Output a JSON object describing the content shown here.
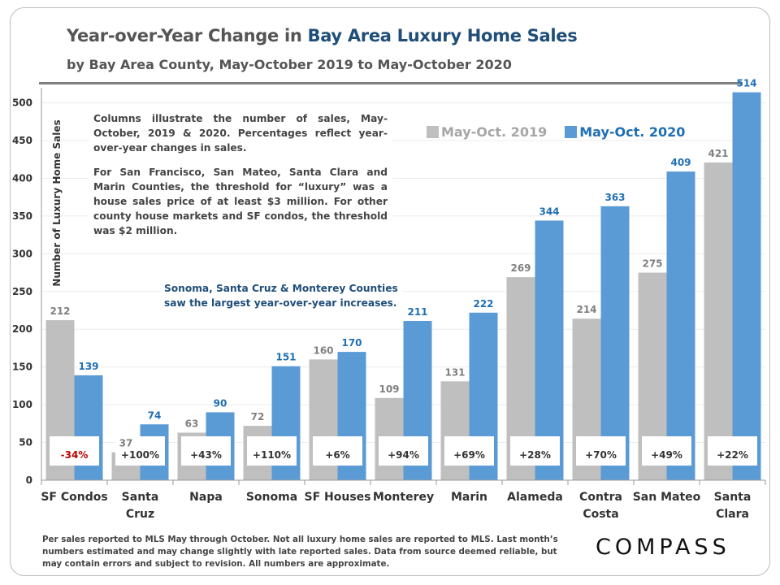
{
  "title_part1": "Year-over-Year Change in ",
  "title_part2": "Bay Area Luxury Home Sales",
  "subtitle": "by Bay Area County, May-October 2019 to May-October 2020",
  "note1_p1": "Columns illustrate the number of sales, May-October, 2019 & 2020. Percentages reflect year-over-year changes in sales.",
  "note1_p2": "For San Francisco, San Mateo, Santa Clara and Marin Counties, the threshold for “luxury” was a house sales price of at least $3 million. For other county house markets and SF condos, the threshold was $2 million.",
  "note2": "Sonoma, Santa Cruz & Monterey Counties saw the largest year-over-year increases.",
  "footer": "Per sales reported to MLS May through October. Not all luxury home sales are reported to MLS. Last month’s numbers estimated and may change slightly with late reported sales. Data from source deemed reliable, but may contain errors and subject to revision. All numbers are approximate.",
  "logo": "COMPASS",
  "colors": {
    "series_2019": "#bfbfbf",
    "series_2020": "#5b9bd5",
    "label_2020": "#1f6fb5",
    "negative": "#c00000",
    "accent_title": "#1f4e79"
  },
  "chart_data": {
    "type": "bar",
    "title": "Year-over-Year Change in Bay Area Luxury Home Sales",
    "subtitle": "by Bay Area County, May-October 2019 to May-October 2020",
    "ylabel": "Number of Luxury Home Sales",
    "xlabel": "",
    "ylim": [
      0,
      520
    ],
    "yticks": [
      0,
      50,
      100,
      150,
      200,
      250,
      300,
      350,
      400,
      450,
      500
    ],
    "grid": true,
    "legend_position": "top-right",
    "categories": [
      [
        "SF Condos"
      ],
      [
        "Santa",
        "Cruz"
      ],
      [
        "Napa"
      ],
      [
        "Sonoma"
      ],
      [
        "SF Houses"
      ],
      [
        "Monterey"
      ],
      [
        "Marin"
      ],
      [
        "Alameda"
      ],
      [
        "Contra",
        "Costa"
      ],
      [
        "San Mateo"
      ],
      [
        "Santa",
        "Clara"
      ]
    ],
    "series": [
      {
        "name": "May-Oct. 2019",
        "values": [
          212,
          37,
          63,
          72,
          160,
          109,
          131,
          269,
          214,
          275,
          421
        ]
      },
      {
        "name": "May-Oct. 2020",
        "values": [
          139,
          74,
          90,
          151,
          170,
          211,
          222,
          344,
          363,
          409,
          514
        ]
      }
    ],
    "pct_change": [
      "-34%",
      "+100%",
      "+43%",
      "+110%",
      "+6%",
      "+94%",
      "+69%",
      "+28%",
      "+70%",
      "+49%",
      "+22%"
    ]
  }
}
